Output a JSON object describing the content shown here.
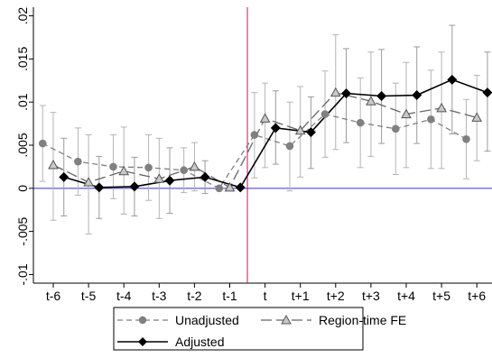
{
  "chart_data": {
    "type": "line",
    "title": "",
    "xlabel": "",
    "ylabel": "",
    "categories": [
      "t-6",
      "t-5",
      "t-4",
      "t-3",
      "t-2",
      "t-1",
      "t",
      "t+1",
      "t+2",
      "t+3",
      "t+4",
      "t+5",
      "t+6"
    ],
    "ylim": [
      -0.011,
      0.021
    ],
    "yticks": [
      -0.01,
      -0.005,
      0,
      0.005,
      0.01,
      0.015,
      0.02
    ],
    "ytick_labels": [
      "-.01",
      "-.005",
      "0",
      ".005",
      ".01",
      ".015",
      ".02"
    ],
    "grid": false,
    "event_line": {
      "at": "t-1/t",
      "color": "#c2185b"
    },
    "zero_line": {
      "value": 0,
      "color": "#3333cc"
    },
    "legend": {
      "placement": "bottom"
    },
    "series": [
      {
        "name": "Unadjusted",
        "style": "dashed-circle",
        "color": "#808080",
        "offset": -0.3,
        "values": [
          0.0052,
          0.0031,
          0.0025,
          0.0024,
          0.0021,
          0.0,
          0.0062,
          0.0049,
          0.0086,
          0.0076,
          0.0069,
          0.008,
          0.0057
        ],
        "ci_low": [
          0.0008,
          -0.0008,
          -0.0012,
          -0.0014,
          -0.0005,
          0.0,
          0.0012,
          -0.0003,
          0.0036,
          0.0024,
          0.0016,
          0.0023,
          0.0011
        ],
        "ci_high": [
          0.0096,
          0.007,
          0.0062,
          0.0062,
          0.0047,
          0.0,
          0.0111,
          0.01,
          0.0136,
          0.0128,
          0.0122,
          0.0137,
          0.0103
        ]
      },
      {
        "name": "Region-time FE",
        "style": "longdash-triangle",
        "color": "#666666",
        "offset": 0.0,
        "values": [
          0.0027,
          0.0007,
          0.002,
          0.0011,
          0.0025,
          0.0001,
          0.0081,
          0.0067,
          0.0111,
          0.0101,
          0.0086,
          0.0093,
          0.0082
        ],
        "ci_low": [
          -0.0037,
          -0.0053,
          -0.003,
          -0.0035,
          -0.0003,
          0.0,
          0.0024,
          0.0013,
          0.0045,
          0.0037,
          0.0024,
          0.0023,
          0.0032
        ],
        "ci_high": [
          0.0088,
          0.0062,
          0.0071,
          0.0058,
          0.0053,
          0.0002,
          0.0122,
          0.0118,
          0.0178,
          0.0158,
          0.0146,
          0.0158,
          0.0131
        ]
      },
      {
        "name": "Adjusted",
        "style": "solid-diamond",
        "color": "#000000",
        "offset": 0.3,
        "values": [
          0.0013,
          0.0001,
          0.0002,
          0.0009,
          0.0013,
          0.0001,
          0.007,
          0.0065,
          0.011,
          0.0107,
          0.0108,
          0.0126,
          0.0111
        ],
        "ci_low": [
          -0.0032,
          -0.0035,
          -0.0032,
          -0.0029,
          -0.0006,
          0.0,
          0.0028,
          0.0023,
          0.0053,
          0.0052,
          0.0052,
          0.0063,
          0.0043
        ],
        "ci_high": [
          0.0058,
          0.0037,
          0.0036,
          0.0047,
          0.0032,
          0.0002,
          0.0113,
          0.0106,
          0.0162,
          0.0161,
          0.0164,
          0.0189,
          0.0158
        ]
      }
    ]
  }
}
